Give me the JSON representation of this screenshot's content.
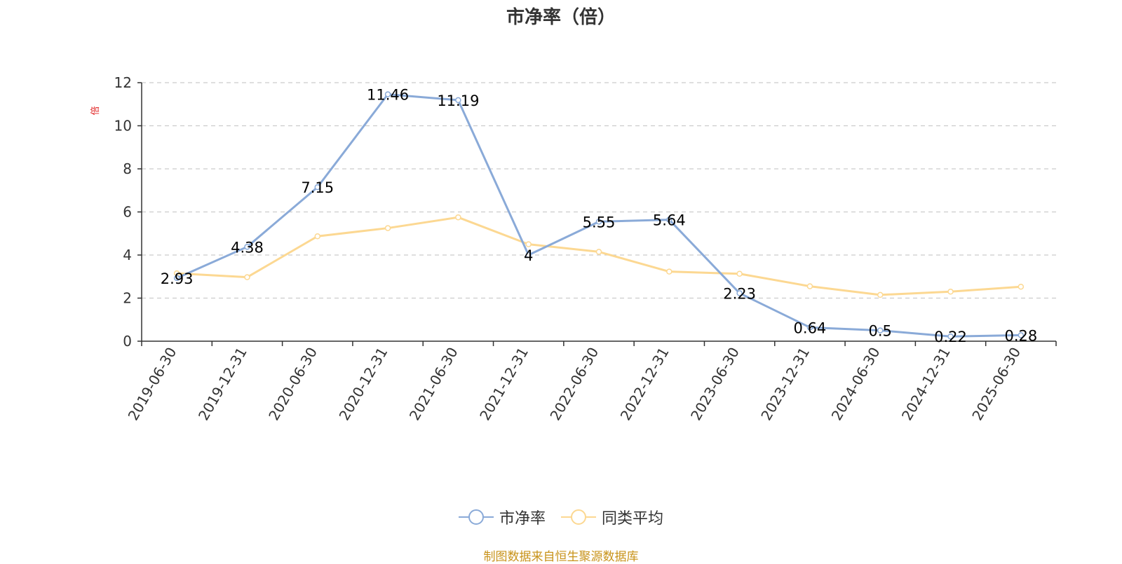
{
  "chart_data": {
    "type": "line",
    "title": "市净率（倍）",
    "ylabel": "倍",
    "ylim": [
      0,
      12
    ],
    "yticks": [
      0,
      2,
      4,
      6,
      8,
      10,
      12
    ],
    "grid": true,
    "legend_position": "bottom",
    "categories": [
      "2019-06-30",
      "2019-12-31",
      "2020-06-30",
      "2020-12-31",
      "2021-06-30",
      "2021-12-31",
      "2022-06-30",
      "2022-12-31",
      "2023-06-30",
      "2023-12-31",
      "2024-06-30",
      "2024-12-31",
      "2025-06-30"
    ],
    "series": [
      {
        "name": "市净率",
        "color": "#8aaad8",
        "values": [
          2.93,
          4.38,
          7.15,
          11.46,
          11.19,
          4,
          5.55,
          5.64,
          2.23,
          0.64,
          0.5,
          0.22,
          0.28
        ],
        "labels": [
          "2.93",
          "4.38",
          "7.15",
          "11.46",
          "11.19",
          "4",
          "5.55",
          "5.64",
          "2.23",
          "0.64",
          "0.5",
          "0.22",
          "0.28"
        ]
      },
      {
        "name": "同类平均",
        "color": "#fcd892",
        "values": [
          3.15,
          2.97,
          4.87,
          5.25,
          5.75,
          4.5,
          4.15,
          3.23,
          3.13,
          2.55,
          2.15,
          2.3,
          2.53
        ]
      }
    ]
  },
  "footer": {
    "source": "制图数据来自恒生聚源数据库"
  }
}
